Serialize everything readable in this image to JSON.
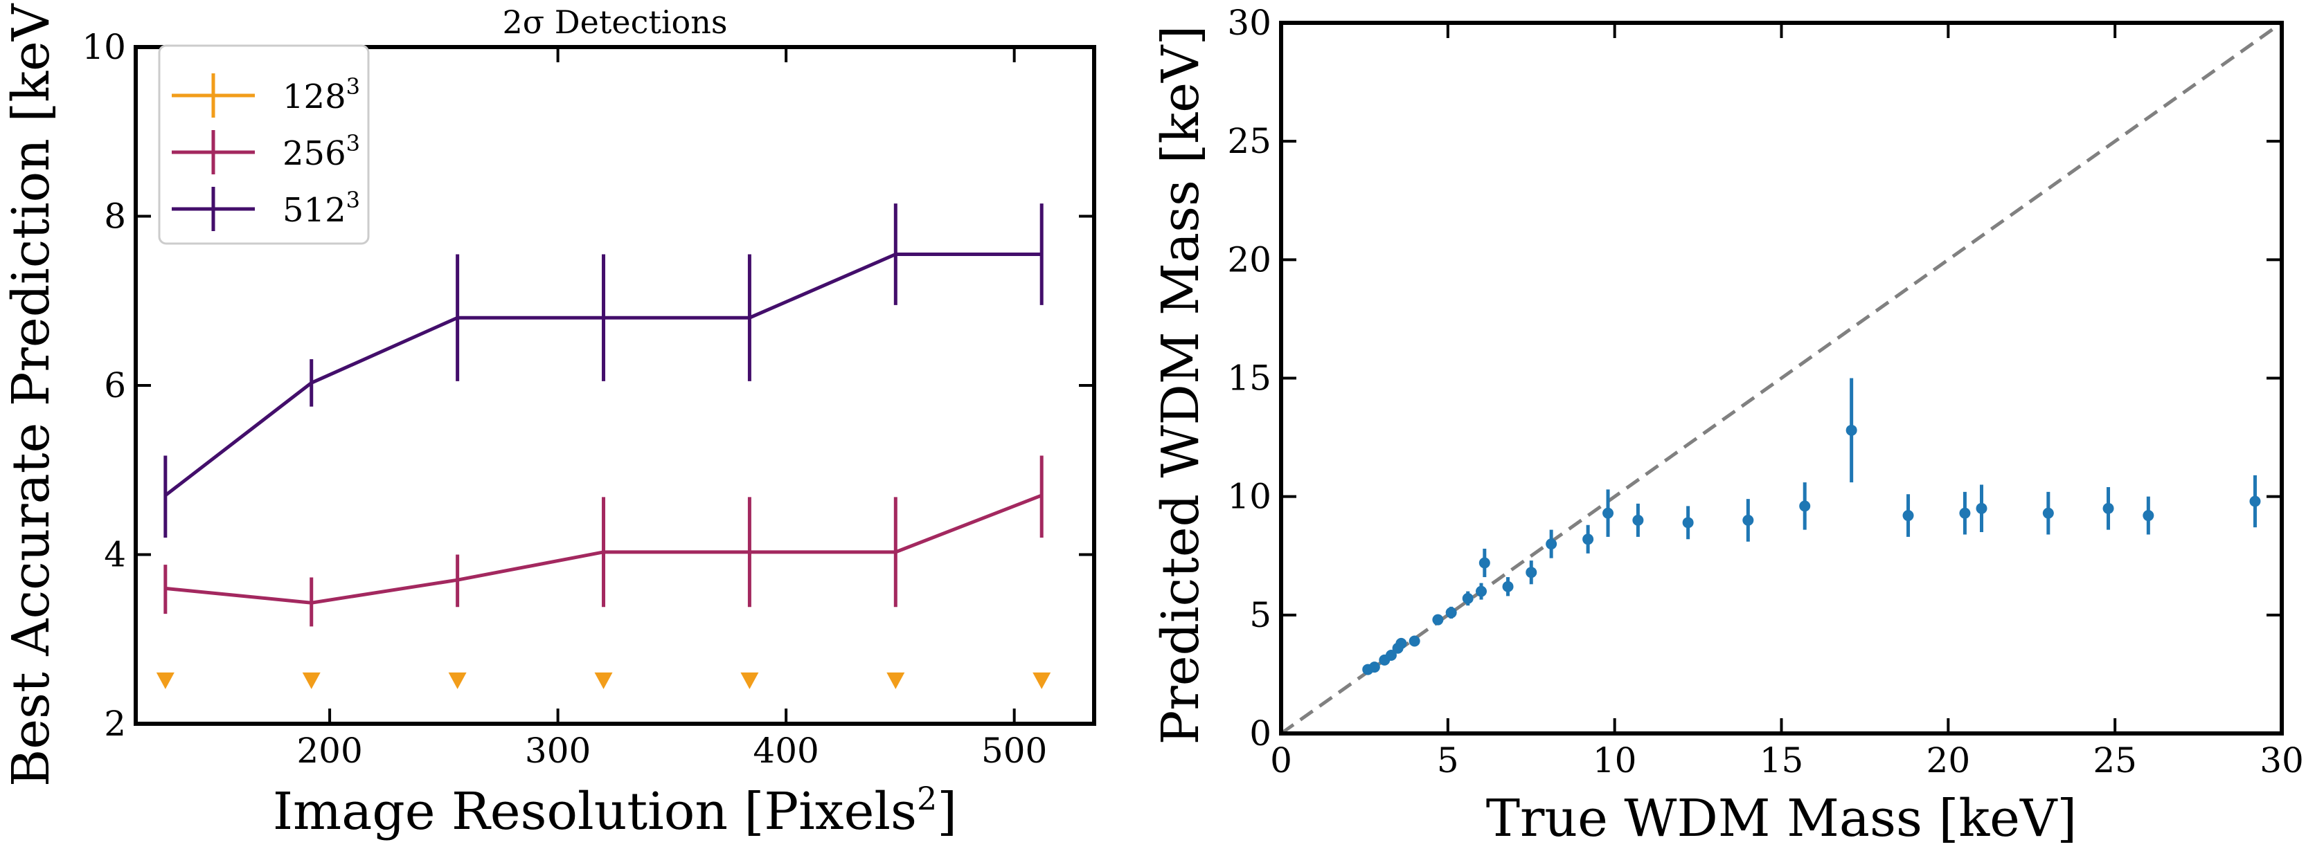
{
  "chart_data": [
    {
      "type": "line",
      "title": "2σ Detections",
      "xlabel": "Image Resolution [Pixels",
      "xlabel_sup": "2",
      "xlabel_end": "]",
      "ylabel": "Best Accurate Prediction [keV]",
      "xlim": [
        115,
        535
      ],
      "ylim": [
        2,
        10
      ],
      "xticks": [
        200,
        300,
        400,
        500
      ],
      "xtick_labels": [
        "200",
        "300",
        "400",
        "500"
      ],
      "yticks": [
        2,
        4,
        6,
        8,
        10
      ],
      "ytick_labels": [
        "2",
        "4",
        "6",
        "8",
        "10"
      ],
      "legend_position": "upper-left",
      "x": [
        128,
        192,
        256,
        320,
        384,
        448,
        512
      ],
      "series": [
        {
          "name": "128",
          "name_sup": "3",
          "color": "#f29d1a",
          "marker": "triangle-down",
          "upper_limit": true,
          "values": [
            2.5,
            2.5,
            2.5,
            2.5,
            2.5,
            2.5,
            2.5
          ]
        },
        {
          "name": "256",
          "name_sup": "3",
          "color": "#a3285f",
          "values": [
            3.6,
            3.43,
            3.7,
            4.03,
            4.03,
            4.03,
            4.7
          ],
          "err_low": [
            0.3,
            0.28,
            0.32,
            0.65,
            0.65,
            0.65,
            0.5
          ],
          "err_high": [
            0.28,
            0.3,
            0.3,
            0.65,
            0.65,
            0.65,
            0.47
          ]
        },
        {
          "name": "512",
          "name_sup": "3",
          "color": "#430e6b",
          "values": [
            4.7,
            6.03,
            6.8,
            6.8,
            6.8,
            7.55,
            7.55
          ],
          "err_low": [
            0.5,
            0.28,
            0.75,
            0.75,
            0.75,
            0.6,
            0.6
          ],
          "err_high": [
            0.47,
            0.28,
            0.75,
            0.75,
            0.75,
            0.6,
            0.6
          ]
        }
      ]
    },
    {
      "type": "scatter",
      "title": "",
      "xlabel": "True WDM Mass [keV]",
      "ylabel": "Predicted WDM Mass [keV]",
      "xlim": [
        0,
        30
      ],
      "ylim": [
        0,
        30
      ],
      "xticks": [
        0,
        5,
        10,
        15,
        20,
        25,
        30
      ],
      "xtick_labels": [
        "0",
        "5",
        "10",
        "15",
        "20",
        "25",
        "30"
      ],
      "yticks": [
        0,
        5,
        10,
        15,
        20,
        25,
        30
      ],
      "ytick_labels": [
        "0",
        "5",
        "10",
        "15",
        "20",
        "25",
        "30"
      ],
      "reference_line": {
        "style": "dashed",
        "color": "#808080",
        "from": [
          0,
          0
        ],
        "to": [
          30,
          30
        ]
      },
      "series": [
        {
          "color": "#1f77b4",
          "x": [
            2.6,
            2.8,
            3.1,
            3.3,
            3.5,
            3.6,
            4.0,
            4.7,
            5.1,
            5.6,
            6.0,
            6.1,
            6.8,
            7.5,
            8.1,
            9.2,
            9.8,
            10.7,
            12.2,
            14.0,
            15.7,
            17.1,
            18.8,
            20.5,
            21.0,
            23.0,
            24.8,
            26.0,
            29.2
          ],
          "y": [
            2.7,
            2.8,
            3.1,
            3.3,
            3.6,
            3.8,
            3.9,
            4.8,
            5.1,
            5.7,
            6.0,
            7.2,
            6.2,
            6.8,
            8.0,
            8.2,
            9.3,
            9.0,
            8.9,
            9.0,
            9.6,
            12.8,
            9.2,
            9.3,
            9.5,
            9.3,
            9.5,
            9.2,
            9.8
          ],
          "err": [
            0.1,
            0.1,
            0.1,
            0.15,
            0.2,
            0.2,
            0.2,
            0.2,
            0.25,
            0.3,
            0.35,
            0.6,
            0.4,
            0.5,
            0.6,
            0.6,
            1.0,
            0.7,
            0.7,
            0.9,
            1.0,
            2.2,
            0.9,
            0.9,
            1.0,
            0.9,
            0.9,
            0.8,
            1.1
          ]
        }
      ]
    }
  ]
}
